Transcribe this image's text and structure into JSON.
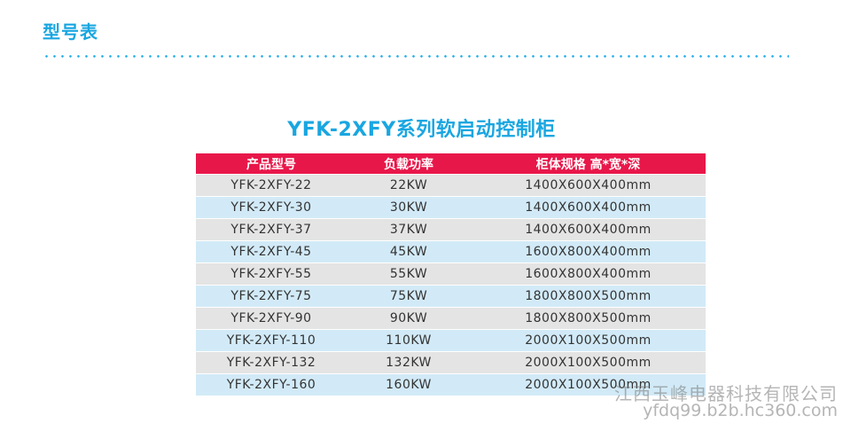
{
  "section": {
    "title": "型号表"
  },
  "table": {
    "title": "YFK-2XFY系列软启动控制柜",
    "headers": [
      "产品型号",
      "负载功率",
      "柜体规格  高*宽*深"
    ],
    "rows": [
      [
        "YFK-2XFY-22",
        "22KW",
        "1400X600X400mm"
      ],
      [
        "YFK-2XFY-30",
        "30KW",
        "1400X600X400mm"
      ],
      [
        "YFK-2XFY-37",
        "37KW",
        "1400X600X400mm"
      ],
      [
        "YFK-2XFY-45",
        "45KW",
        "1600X800X400mm"
      ],
      [
        "YFK-2XFY-55",
        "55KW",
        "1600X800X400mm"
      ],
      [
        "YFK-2XFY-75",
        "75KW",
        "1800X800X500mm"
      ],
      [
        "YFK-2XFY-90",
        "90KW",
        "1800X800X500mm"
      ],
      [
        "YFK-2XFY-110",
        "110KW",
        "2000X100X500mm"
      ],
      [
        "YFK-2XFY-132",
        "132KW",
        "2000X100X500mm"
      ],
      [
        "YFK-2XFY-160",
        "160KW",
        "2000X100X500mm"
      ]
    ]
  },
  "watermark": {
    "company": "江西玉峰电器科技有限公司",
    "url": "yfdq99.b2b.hc360.com"
  },
  "colors": {
    "accent": "#19a6e1",
    "header_bg": "#e8174a",
    "row_gray": "#e4e4e4",
    "row_blue": "#d2eaf7"
  }
}
